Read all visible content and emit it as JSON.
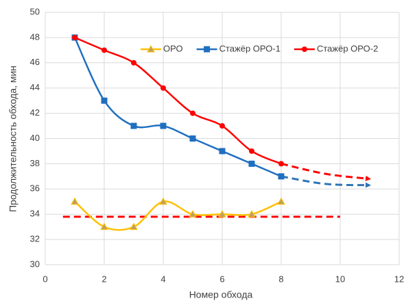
{
  "chart_data": {
    "type": "line",
    "xlabel": "Номер обхода",
    "ylabel": "Продолжительность обхода, мин",
    "xlim": [
      0,
      12
    ],
    "xticks": [
      0,
      2,
      4,
      6,
      8,
      10,
      12
    ],
    "ylim": [
      30,
      50
    ],
    "yticks": [
      30,
      32,
      34,
      36,
      38,
      40,
      42,
      44,
      46,
      48,
      50
    ],
    "grid": true,
    "smooth": true,
    "legend": "top",
    "x": [
      1,
      2,
      3,
      4,
      5,
      6,
      7,
      8
    ],
    "series": [
      {
        "name": "ОРО",
        "color": "#ffc000",
        "marker": "triangle",
        "values": [
          35,
          33,
          33,
          35,
          34,
          34,
          34,
          35
        ]
      },
      {
        "name": "Стажёр ОРО-1",
        "color": "#1f6fc0",
        "marker": "square",
        "values": [
          48,
          43,
          41,
          41,
          40,
          39,
          38,
          37
        ]
      },
      {
        "name": "Стажёр ОРО-2",
        "color": "#ff0000",
        "marker": "circle",
        "values": [
          48,
          47,
          46,
          44,
          42,
          41,
          39,
          38
        ]
      }
    ],
    "trend_lines": [
      {
        "color": "#ff0000",
        "x": [
          8,
          9.5,
          11
        ],
        "values": [
          38,
          37.2,
          36.8
        ]
      },
      {
        "color": "#2e75b6",
        "x": [
          8,
          9.5,
          11
        ],
        "values": [
          37,
          36.4,
          36.3
        ]
      },
      {
        "color": "#ff0000",
        "x": [
          0.6,
          10
        ],
        "values": [
          33.8,
          33.8
        ]
      }
    ]
  }
}
